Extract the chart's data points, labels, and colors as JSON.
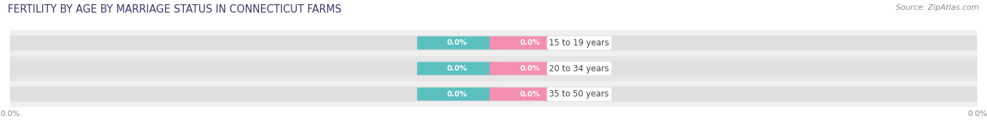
{
  "title": "FERTILITY BY AGE BY MARRIAGE STATUS IN CONNECTICUT FARMS",
  "source": "Source: ZipAtlas.com",
  "categories": [
    "15 to 19 years",
    "20 to 34 years",
    "35 to 50 years"
  ],
  "married_values": [
    0.0,
    0.0,
    0.0
  ],
  "unmarried_values": [
    0.0,
    0.0,
    0.0
  ],
  "married_color": "#5bbfbf",
  "unmarried_color": "#f48fb1",
  "row_bg_colors": [
    "#f0f0f0",
    "#e6e6e6",
    "#f0f0f0"
  ],
  "full_bar_color": "#e0e0e0",
  "label_color": "#444444",
  "title_color": "#3a3a6e",
  "source_color": "#888888",
  "tick_color": "#888888",
  "figsize": [
    14.06,
    1.96
  ],
  "dpi": 100,
  "bar_height": 0.62,
  "value_label_fontsize": 7.5,
  "category_fontsize": 8.5,
  "title_fontsize": 10.5,
  "legend_fontsize": 8.5,
  "source_fontsize": 8,
  "axis_tick_fontsize": 8,
  "mini_bar_width": 0.15
}
